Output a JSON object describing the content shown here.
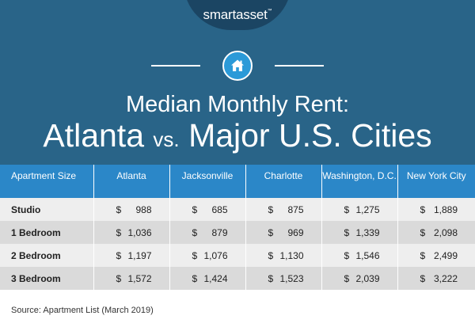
{
  "brand": {
    "logo_text": "smartasset",
    "logo_tm": "™"
  },
  "title": {
    "line1": "Median Monthly Rent:",
    "city": "Atlanta",
    "vs": "vs.",
    "rest": "Major U.S. Cities"
  },
  "colors": {
    "header_bg": "#296488",
    "logo_tab_bg": "#1b4563",
    "icon_circle": "#2b9ad8",
    "table_header_bg": "#2b87c8",
    "row_light": "#eeeeee",
    "row_dark": "#dadada"
  },
  "icons": {
    "home": "home-icon"
  },
  "table": {
    "headers": [
      "Apartment Size",
      "Atlanta",
      "Jacksonville",
      "Charlotte",
      "Washington, D.C.",
      "New York City"
    ],
    "rows": [
      {
        "size": "Studio",
        "values": [
          "988",
          "685",
          "875",
          "1,275",
          "1,889"
        ]
      },
      {
        "size": "1 Bedroom",
        "values": [
          "1,036",
          "879",
          "969",
          "1,339",
          "2,098"
        ]
      },
      {
        "size": "2 Bedroom",
        "values": [
          "1,197",
          "1,076",
          "1,130",
          "1,546",
          "2,499"
        ]
      },
      {
        "size": "3 Bedroom",
        "values": [
          "1,572",
          "1,424",
          "1,523",
          "2,039",
          "3,222"
        ]
      }
    ],
    "currency": "$"
  },
  "source": "Source: Apartment List (March 2019)"
}
